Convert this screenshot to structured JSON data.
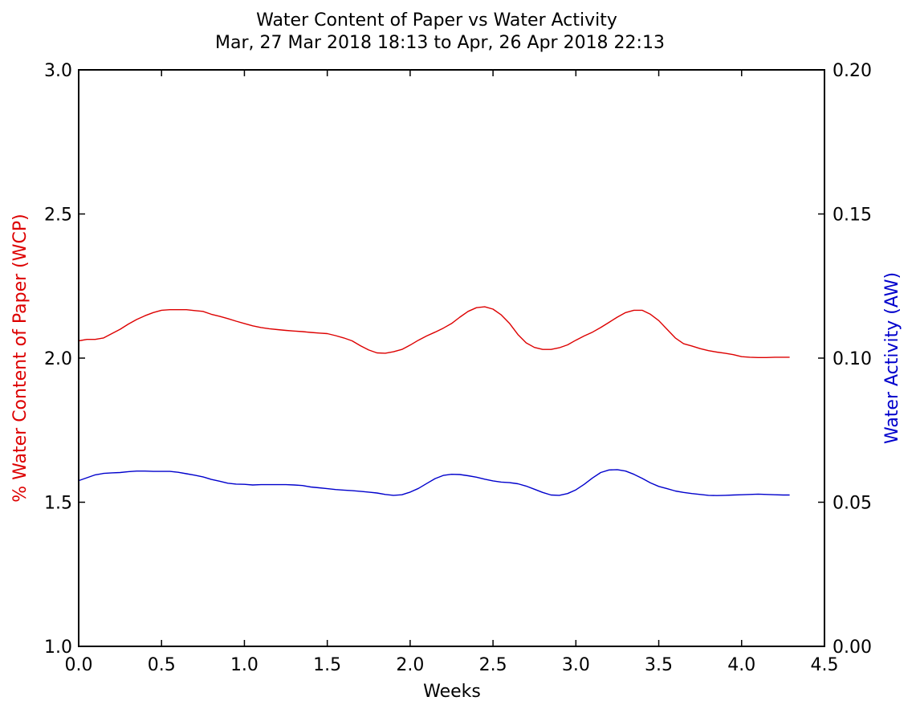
{
  "chart_data": {
    "type": "line",
    "title": "Water Content of Paper vs Water Activity",
    "subtitle": "Mar, 27 Mar 2018 18:13 to Apr, 26 Apr 2018 22:13",
    "xlabel": "Weeks",
    "ylabel_left": "% Water Content of Paper (WCP)",
    "ylabel_right": "Water Activity (AW)",
    "xlim": [
      0,
      4.5
    ],
    "ylim_left": [
      1.0,
      3.0
    ],
    "ylim_right": [
      0.0,
      0.2
    ],
    "x_ticks": [
      "0.0",
      "0.5",
      "1.0",
      "1.5",
      "2.0",
      "2.5",
      "3.0",
      "3.5",
      "4.0",
      "4.5"
    ],
    "y_ticks_left": [
      "1.0",
      "1.5",
      "2.0",
      "2.5",
      "3.0"
    ],
    "y_ticks_right": [
      "0.00",
      "0.05",
      "0.10",
      "0.15",
      "0.20"
    ],
    "grid": false,
    "colors": {
      "wcp": "#dd0000",
      "aw": "#0000cc",
      "axes": "#000000"
    },
    "series": [
      {
        "axis": "left",
        "color": "#dd0000",
        "points": [
          [
            0.0,
            2.06
          ],
          [
            0.05,
            2.065
          ],
          [
            0.1,
            2.065
          ],
          [
            0.15,
            2.07
          ],
          [
            0.2,
            2.085
          ],
          [
            0.25,
            2.1
          ],
          [
            0.3,
            2.118
          ],
          [
            0.35,
            2.134
          ],
          [
            0.4,
            2.147
          ],
          [
            0.45,
            2.158
          ],
          [
            0.5,
            2.166
          ],
          [
            0.55,
            2.168
          ],
          [
            0.6,
            2.168
          ],
          [
            0.65,
            2.168
          ],
          [
            0.7,
            2.165
          ],
          [
            0.75,
            2.162
          ],
          [
            0.8,
            2.152
          ],
          [
            0.85,
            2.145
          ],
          [
            0.9,
            2.137
          ],
          [
            0.95,
            2.128
          ],
          [
            1.0,
            2.12
          ],
          [
            1.05,
            2.112
          ],
          [
            1.1,
            2.106
          ],
          [
            1.15,
            2.102
          ],
          [
            1.2,
            2.099
          ],
          [
            1.25,
            2.096
          ],
          [
            1.3,
            2.094
          ],
          [
            1.35,
            2.092
          ],
          [
            1.4,
            2.089
          ],
          [
            1.45,
            2.087
          ],
          [
            1.5,
            2.085
          ],
          [
            1.55,
            2.078
          ],
          [
            1.6,
            2.07
          ],
          [
            1.65,
            2.06
          ],
          [
            1.7,
            2.043
          ],
          [
            1.75,
            2.028
          ],
          [
            1.8,
            2.018
          ],
          [
            1.85,
            2.017
          ],
          [
            1.9,
            2.022
          ],
          [
            1.95,
            2.03
          ],
          [
            2.0,
            2.045
          ],
          [
            2.05,
            2.062
          ],
          [
            2.1,
            2.077
          ],
          [
            2.15,
            2.09
          ],
          [
            2.2,
            2.104
          ],
          [
            2.25,
            2.12
          ],
          [
            2.3,
            2.142
          ],
          [
            2.35,
            2.162
          ],
          [
            2.4,
            2.175
          ],
          [
            2.45,
            2.178
          ],
          [
            2.5,
            2.17
          ],
          [
            2.55,
            2.15
          ],
          [
            2.6,
            2.12
          ],
          [
            2.65,
            2.082
          ],
          [
            2.7,
            2.053
          ],
          [
            2.75,
            2.037
          ],
          [
            2.8,
            2.03
          ],
          [
            2.85,
            2.03
          ],
          [
            2.9,
            2.036
          ],
          [
            2.95,
            2.046
          ],
          [
            3.0,
            2.062
          ],
          [
            3.05,
            2.077
          ],
          [
            3.1,
            2.09
          ],
          [
            3.15,
            2.106
          ],
          [
            3.2,
            2.124
          ],
          [
            3.25,
            2.142
          ],
          [
            3.3,
            2.158
          ],
          [
            3.35,
            2.166
          ],
          [
            3.4,
            2.166
          ],
          [
            3.45,
            2.152
          ],
          [
            3.5,
            2.13
          ],
          [
            3.55,
            2.1
          ],
          [
            3.6,
            2.07
          ],
          [
            3.65,
            2.05
          ],
          [
            3.7,
            2.042
          ],
          [
            3.75,
            2.033
          ],
          [
            3.8,
            2.026
          ],
          [
            3.85,
            2.021
          ],
          [
            3.9,
            2.017
          ],
          [
            3.95,
            2.012
          ],
          [
            4.0,
            2.005
          ],
          [
            4.05,
            2.003
          ],
          [
            4.1,
            2.002
          ],
          [
            4.15,
            2.002
          ],
          [
            4.2,
            2.003
          ],
          [
            4.25,
            2.003
          ],
          [
            4.29,
            2.003
          ]
        ]
      },
      {
        "axis": "right",
        "color": "#0000cc",
        "points": [
          [
            0.0,
            0.0575
          ],
          [
            0.05,
            0.0585
          ],
          [
            0.1,
            0.0595
          ],
          [
            0.15,
            0.06
          ],
          [
            0.2,
            0.0602
          ],
          [
            0.25,
            0.0603
          ],
          [
            0.3,
            0.0606
          ],
          [
            0.35,
            0.0608
          ],
          [
            0.4,
            0.0608
          ],
          [
            0.45,
            0.0607
          ],
          [
            0.5,
            0.0607
          ],
          [
            0.55,
            0.0607
          ],
          [
            0.6,
            0.0604
          ],
          [
            0.65,
            0.0599
          ],
          [
            0.7,
            0.0594
          ],
          [
            0.75,
            0.0588
          ],
          [
            0.8,
            0.0579
          ],
          [
            0.85,
            0.0573
          ],
          [
            0.9,
            0.0566
          ],
          [
            0.95,
            0.0563
          ],
          [
            1.0,
            0.0562
          ],
          [
            1.05,
            0.056
          ],
          [
            1.1,
            0.0561
          ],
          [
            1.15,
            0.0561
          ],
          [
            1.2,
            0.0561
          ],
          [
            1.25,
            0.0561
          ],
          [
            1.3,
            0.056
          ],
          [
            1.35,
            0.0558
          ],
          [
            1.4,
            0.0553
          ],
          [
            1.45,
            0.055
          ],
          [
            1.5,
            0.0547
          ],
          [
            1.55,
            0.0544
          ],
          [
            1.6,
            0.0542
          ],
          [
            1.65,
            0.054
          ],
          [
            1.7,
            0.0538
          ],
          [
            1.75,
            0.0535
          ],
          [
            1.8,
            0.0532
          ],
          [
            1.85,
            0.0527
          ],
          [
            1.9,
            0.0524
          ],
          [
            1.95,
            0.0526
          ],
          [
            2.0,
            0.0535
          ],
          [
            2.05,
            0.0548
          ],
          [
            2.1,
            0.0565
          ],
          [
            2.15,
            0.0582
          ],
          [
            2.2,
            0.0593
          ],
          [
            2.25,
            0.0597
          ],
          [
            2.3,
            0.0596
          ],
          [
            2.35,
            0.0592
          ],
          [
            2.4,
            0.0587
          ],
          [
            2.45,
            0.058
          ],
          [
            2.5,
            0.0574
          ],
          [
            2.55,
            0.057
          ],
          [
            2.6,
            0.0568
          ],
          [
            2.65,
            0.0564
          ],
          [
            2.7,
            0.0556
          ],
          [
            2.75,
            0.0545
          ],
          [
            2.8,
            0.0534
          ],
          [
            2.85,
            0.0525
          ],
          [
            2.9,
            0.0524
          ],
          [
            2.95,
            0.053
          ],
          [
            3.0,
            0.0543
          ],
          [
            3.05,
            0.0562
          ],
          [
            3.1,
            0.0584
          ],
          [
            3.15,
            0.0603
          ],
          [
            3.2,
            0.0612
          ],
          [
            3.25,
            0.0613
          ],
          [
            3.3,
            0.0608
          ],
          [
            3.35,
            0.0597
          ],
          [
            3.4,
            0.0583
          ],
          [
            3.45,
            0.0567
          ],
          [
            3.5,
            0.0555
          ],
          [
            3.55,
            0.0547
          ],
          [
            3.6,
            0.0539
          ],
          [
            3.65,
            0.0534
          ],
          [
            3.7,
            0.053
          ],
          [
            3.75,
            0.0527
          ],
          [
            3.8,
            0.0524
          ],
          [
            3.85,
            0.0523
          ],
          [
            3.9,
            0.0524
          ],
          [
            3.95,
            0.0525
          ],
          [
            4.0,
            0.0526
          ],
          [
            4.05,
            0.0527
          ],
          [
            4.1,
            0.0528
          ],
          [
            4.15,
            0.0527
          ],
          [
            4.2,
            0.0526
          ],
          [
            4.25,
            0.0525
          ],
          [
            4.29,
            0.0525
          ]
        ]
      }
    ]
  }
}
